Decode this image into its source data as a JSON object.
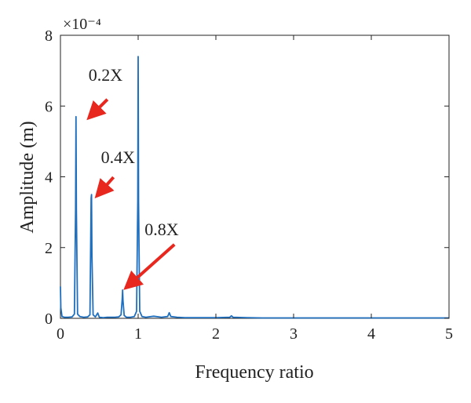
{
  "chart_data": {
    "type": "line",
    "xlabel": "Frequency ratio",
    "ylabel": "Amplitude (m)",
    "xlim": [
      0,
      5
    ],
    "ylim": [
      0,
      8
    ],
    "y_exponent_label": "×10⁻⁴",
    "x_ticks": [
      0,
      1,
      2,
      3,
      4,
      5
    ],
    "y_ticks": [
      0,
      2,
      4,
      6,
      8
    ],
    "grid": false,
    "colors": {
      "line": "#1f6fbf",
      "arrow": "#e8281f"
    },
    "series": [
      {
        "x": [
          0,
          0.005,
          0.02,
          0.05,
          0.1,
          0.15,
          0.18,
          0.195,
          0.2,
          0.205,
          0.22,
          0.25,
          0.3,
          0.35,
          0.38,
          0.395,
          0.4,
          0.405,
          0.42,
          0.45,
          0.48,
          0.5,
          0.55,
          0.6,
          0.7,
          0.75,
          0.78,
          0.795,
          0.8,
          0.805,
          0.82,
          0.85,
          0.9,
          0.95,
          0.98,
          0.995,
          1.0,
          1.005,
          1.02,
          1.05,
          1.1,
          1.2,
          1.3,
          1.38,
          1.4,
          1.42,
          1.5,
          1.6,
          1.8,
          2.0,
          2.18,
          2.2,
          2.22,
          2.4,
          2.6,
          3.0,
          3.5,
          4.0,
          4.5,
          5.0
        ],
        "y": [
          0.9,
          0.3,
          0.05,
          0.03,
          0.03,
          0.04,
          0.12,
          3.1,
          5.7,
          3.1,
          0.12,
          0.05,
          0.03,
          0.04,
          0.1,
          3.4,
          3.5,
          1.8,
          0.1,
          0.04,
          0.15,
          0.03,
          0.02,
          0.03,
          0.03,
          0.04,
          0.1,
          0.55,
          0.8,
          0.5,
          0.08,
          0.03,
          0.03,
          0.05,
          0.2,
          3.3,
          7.4,
          3.3,
          0.2,
          0.05,
          0.03,
          0.06,
          0.03,
          0.05,
          0.16,
          0.05,
          0.03,
          0.02,
          0.02,
          0.02,
          0.03,
          0.07,
          0.03,
          0.02,
          0.01,
          0.01,
          0.01,
          0.01,
          0.01,
          0.01
        ]
      }
    ],
    "annotations": [
      {
        "text": "0.2X",
        "x": 0.2,
        "y": 5.7
      },
      {
        "text": "0.4X",
        "x": 0.4,
        "y": 3.5
      },
      {
        "text": "0.8X",
        "x": 0.8,
        "y": 0.8
      }
    ]
  }
}
